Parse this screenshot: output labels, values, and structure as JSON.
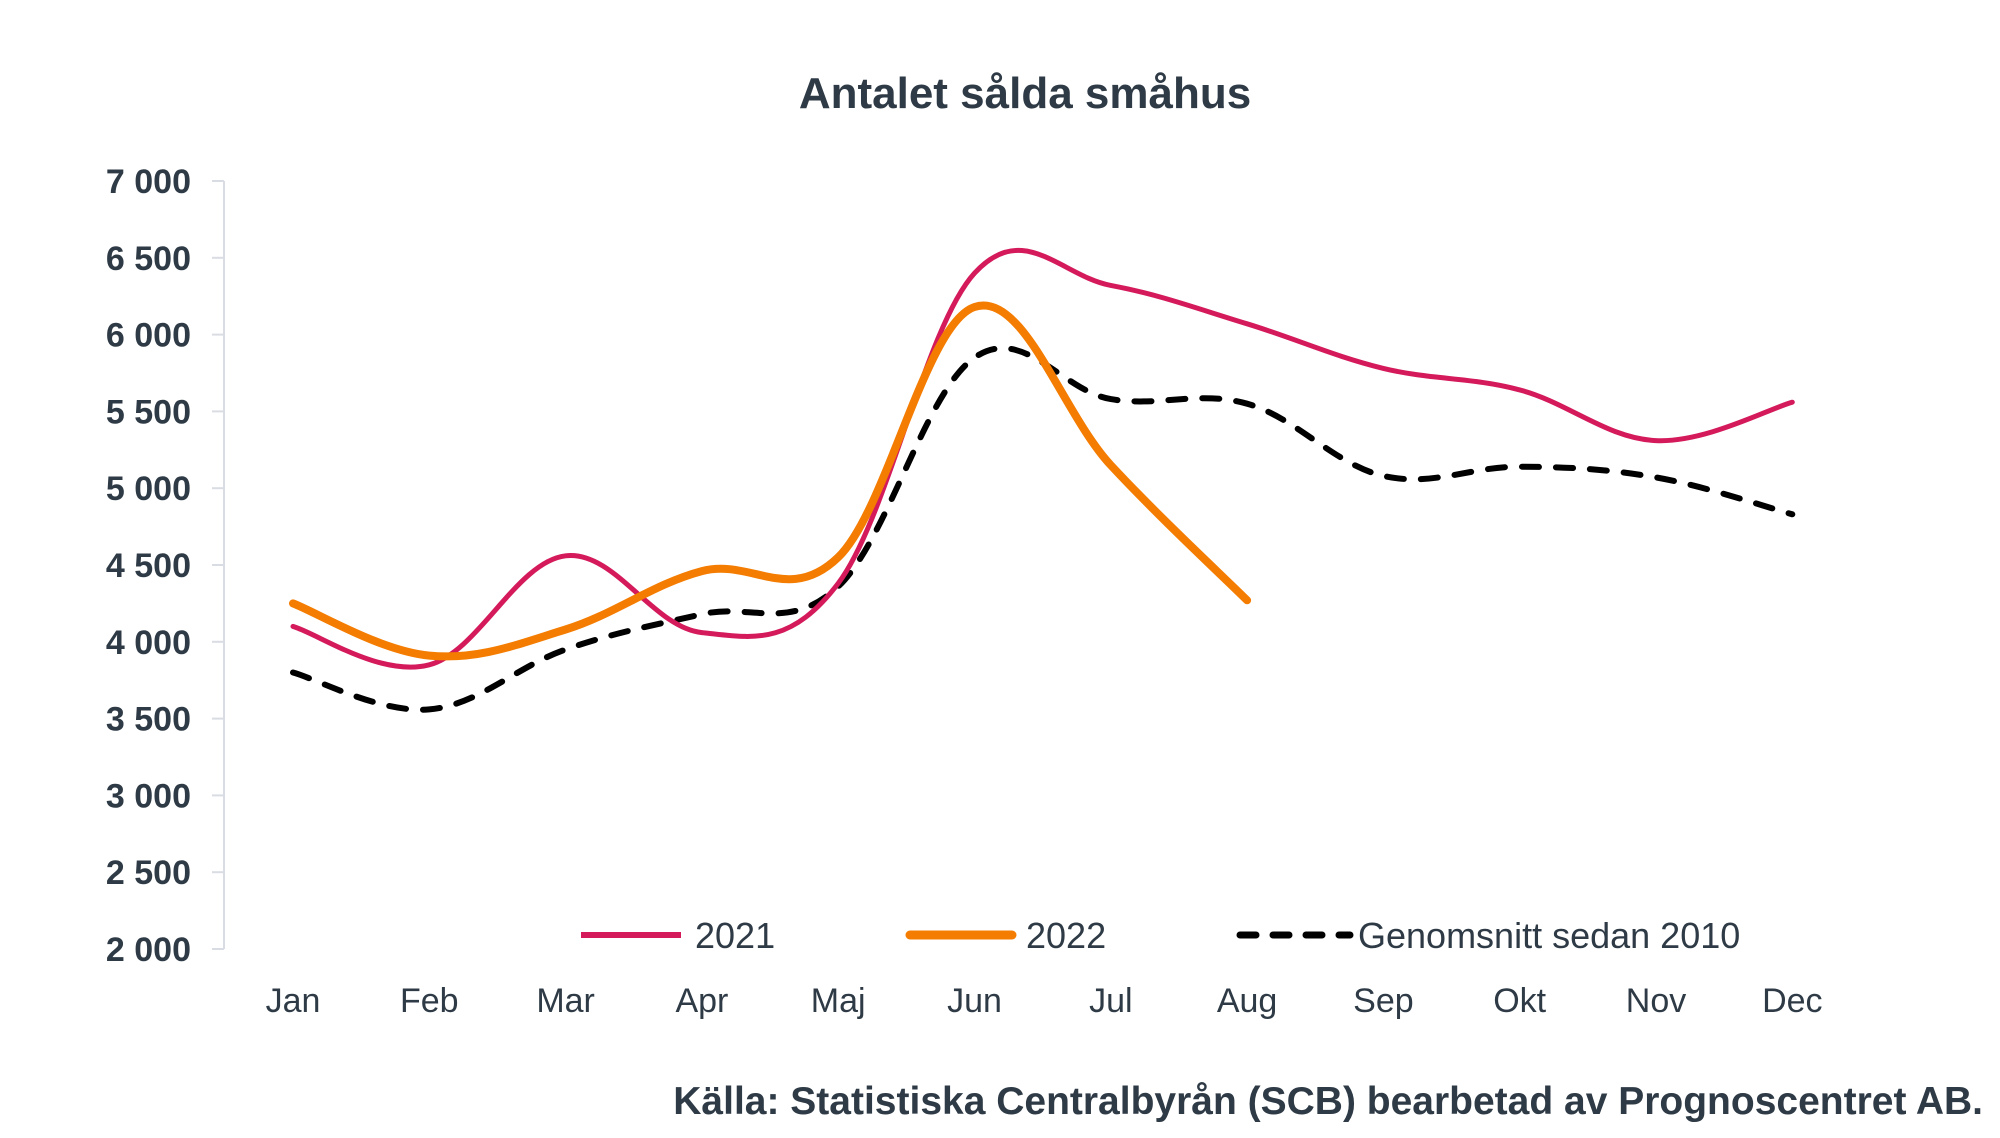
{
  "chart_data": {
    "type": "line",
    "title": "Antalet sålda småhus",
    "xlabel": "",
    "ylabel": "",
    "categories": [
      "Jan",
      "Feb",
      "Mar",
      "Apr",
      "Maj",
      "Jun",
      "Jul",
      "Aug",
      "Sep",
      "Okt",
      "Nov",
      "Dec"
    ],
    "ylim": [
      2000,
      7000
    ],
    "yticks": [
      2000,
      2500,
      3000,
      3500,
      4000,
      4500,
      5000,
      5500,
      6000,
      6500,
      7000
    ],
    "ytick_labels": [
      "2 000",
      "2 500",
      "3 000",
      "3 500",
      "4 000",
      "4 500",
      "5 000",
      "5 500",
      "6 000",
      "6 500",
      "7 000"
    ],
    "grid": false,
    "legend_position": "bottom-inside",
    "smoothed": true,
    "series": [
      {
        "name": "2021",
        "color": "#d41a5a",
        "style": "solid",
        "values": [
          4100,
          3850,
          4560,
          4060,
          4380,
          6400,
          6320,
          6070,
          5780,
          5640,
          5310,
          5560
        ]
      },
      {
        "name": "2022",
        "color": "#f47c00",
        "style": "solid-thick",
        "values": [
          4250,
          3910,
          4080,
          4460,
          4550,
          6180,
          5150,
          4270,
          null,
          null,
          null,
          null
        ]
      },
      {
        "name": "Genomsnitt sedan 2010",
        "color": "#000000",
        "style": "dashed",
        "values": [
          3800,
          3560,
          3950,
          4180,
          4360,
          5850,
          5580,
          5550,
          5080,
          5140,
          5070,
          4830
        ]
      }
    ],
    "source": "Källa: Statistiska Centralbyrån (SCB) bearbetad av Prognoscentret AB."
  }
}
